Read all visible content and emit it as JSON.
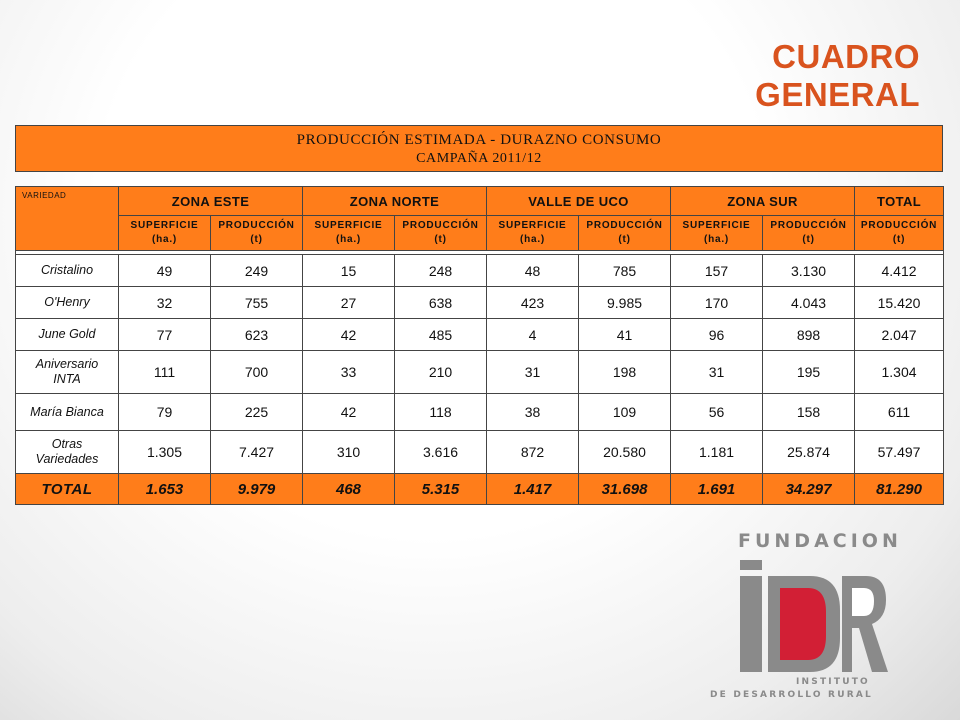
{
  "slide": {
    "title": "CUADRO GENERAL"
  },
  "banner": {
    "line1": "PRODUCCIÓN ESTIMADA - DURAZNO CONSUMO",
    "line2": "CAMPAÑA 2011/12"
  },
  "table": {
    "variedad_header": "VARIEDAD",
    "zones": [
      "ZONA ESTE",
      "ZONA NORTE",
      "VALLE DE UCO",
      "ZONA SUR",
      "TOTAL"
    ],
    "sub": {
      "sup_line1": "SUPERFICIE",
      "sup_line2": "(ha.)",
      "prod_line1": "PRODUCCIÓN",
      "prod_line2": "(t)"
    },
    "rows": [
      {
        "name_line1": "Cristalino",
        "name_line2": "",
        "values": [
          "49",
          "249",
          "15",
          "248",
          "48",
          "785",
          "157",
          "3.130",
          "4.412"
        ]
      },
      {
        "name_line1": "O'Henry",
        "name_line2": "",
        "values": [
          "32",
          "755",
          "27",
          "638",
          "423",
          "9.985",
          "170",
          "4.043",
          "15.420"
        ]
      },
      {
        "name_line1": "June Gold",
        "name_line2": "",
        "values": [
          "77",
          "623",
          "42",
          "485",
          "4",
          "41",
          "96",
          "898",
          "2.047"
        ]
      },
      {
        "name_line1": "Aniversario",
        "name_line2": "INTA",
        "values": [
          "111",
          "700",
          "33",
          "210",
          "31",
          "198",
          "31",
          "195",
          "1.304"
        ]
      },
      {
        "name_line1": "María Bianca",
        "name_line2": "",
        "values": [
          "79",
          "225",
          "42",
          "118",
          "38",
          "109",
          "56",
          "158",
          "611"
        ]
      },
      {
        "name_line1": "Otras",
        "name_line2": "Variedades",
        "values": [
          "1.305",
          "7.427",
          "310",
          "3.616",
          "872",
          "20.580",
          "1.181",
          "25.874",
          "57.497"
        ]
      }
    ],
    "total": {
      "label": "TOTAL",
      "values": [
        "1.653",
        "9.979",
        "468",
        "5.315",
        "1.417",
        "31.698",
        "1.691",
        "34.297",
        "81.290"
      ]
    }
  },
  "logo": {
    "top_text": "FUNDACION",
    "mark_text": "iDR",
    "bottom_line1": "INSTITUTO",
    "bottom_line2": "DE DESARROLLO RURAL",
    "colors": {
      "gray": "#8a8a8a",
      "red": "#d21f35"
    }
  },
  "colors": {
    "accent": "#ff7d1a",
    "title": "#d9531e"
  }
}
